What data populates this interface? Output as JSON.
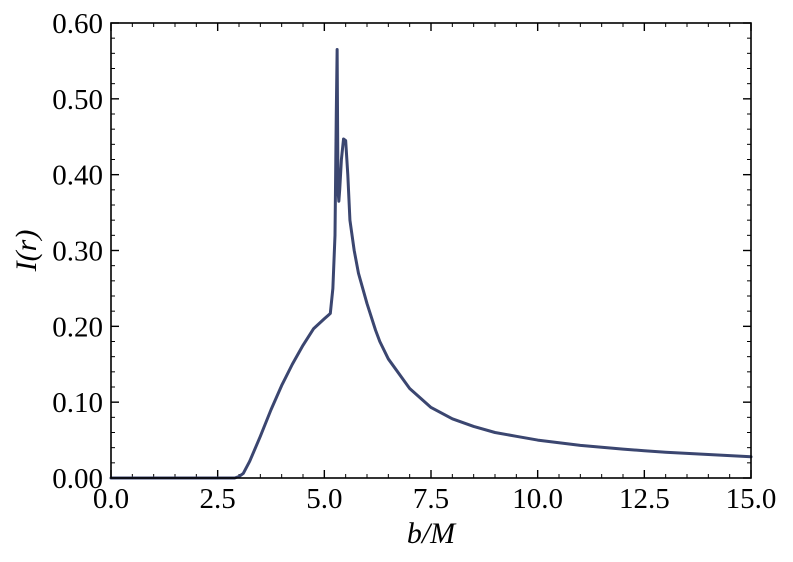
{
  "chart_data": {
    "type": "line",
    "title": "",
    "xlabel": "b/M",
    "ylabel": "I(r)",
    "xlim": [
      0.0,
      15.0
    ],
    "ylim": [
      0.0,
      0.6
    ],
    "grid": false,
    "x_ticks": [
      "0.0",
      "2.5",
      "5.0",
      "7.5",
      "10.0",
      "12.5",
      "15.0"
    ],
    "x_tick_values": [
      0.0,
      2.5,
      5.0,
      7.5,
      10.0,
      12.5,
      15.0
    ],
    "y_ticks": [
      "0.00",
      "0.10",
      "0.20",
      "0.30",
      "0.40",
      "0.50",
      "0.60"
    ],
    "y_tick_values": [
      0.0,
      0.1,
      0.2,
      0.3,
      0.4,
      0.5,
      0.6
    ],
    "colors": {
      "line": "#3b4670",
      "axis": "#000000"
    },
    "series": [
      {
        "x": [
          0.0,
          1.0,
          2.0,
          2.9,
          3.0,
          3.1,
          3.25,
          3.5,
          3.75,
          4.0,
          4.25,
          4.5,
          4.75,
          5.0,
          5.1,
          5.14,
          5.2,
          5.25,
          5.28,
          5.3,
          5.32,
          5.34,
          5.36,
          5.4,
          5.45,
          5.5,
          5.55,
          5.6,
          5.7,
          5.8,
          6.0,
          6.2,
          6.3,
          6.5,
          7.0,
          7.5,
          8.0,
          8.5,
          9.0,
          9.5,
          10.0,
          11.0,
          12.0,
          12.5,
          13.0,
          14.0,
          15.0
        ],
        "y": [
          0.0,
          0.0,
          0.0,
          0.0,
          0.002,
          0.006,
          0.022,
          0.055,
          0.09,
          0.122,
          0.15,
          0.175,
          0.197,
          0.21,
          0.215,
          0.217,
          0.25,
          0.32,
          0.48,
          0.565,
          0.38,
          0.365,
          0.38,
          0.42,
          0.447,
          0.445,
          0.4,
          0.34,
          0.3,
          0.27,
          0.23,
          0.195,
          0.18,
          0.157,
          0.118,
          0.093,
          0.078,
          0.068,
          0.06,
          0.055,
          0.05,
          0.043,
          0.038,
          0.036,
          0.034,
          0.031,
          0.028
        ]
      }
    ]
  }
}
